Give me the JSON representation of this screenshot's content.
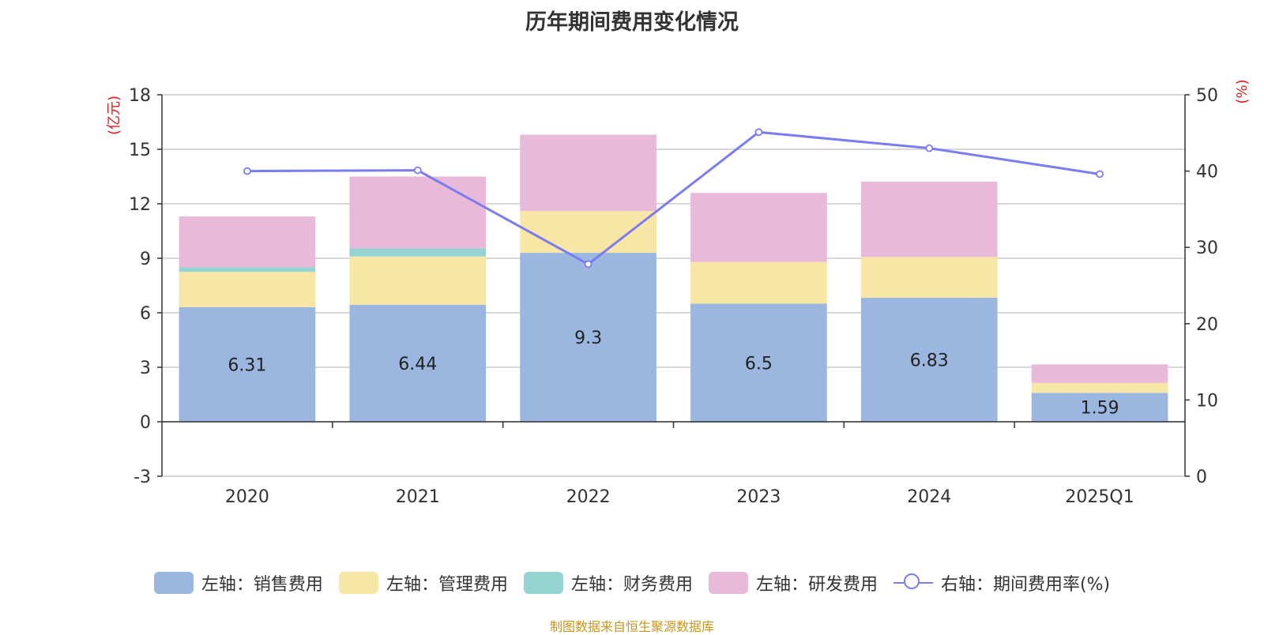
{
  "title": "历年期间费用变化情况",
  "footer": "制图数据来自恒生聚源数据库",
  "colors": {
    "sales": "#9bb7e0",
    "admin": "#f8e6a6",
    "finance": "#96d4d4",
    "rnd": "#e8b9d9",
    "rate": "#7b7cf0",
    "axis_unit": "#e02020",
    "grid": "#cccccc",
    "text": "#333333"
  },
  "chart_data": {
    "type": "bar",
    "stacked": true,
    "title": "历年期间费用变化情况",
    "categories": [
      "2020",
      "2021",
      "2022",
      "2023",
      "2024",
      "2025Q1"
    ],
    "left_axis": {
      "unit": "(亿元)",
      "ticks": [
        -3,
        0,
        3,
        6,
        9,
        12,
        15,
        18
      ],
      "range": [
        -3,
        18
      ]
    },
    "right_axis": {
      "unit": "(%)",
      "ticks": [
        0,
        10,
        20,
        30,
        40,
        50
      ],
      "range": [
        0,
        50
      ]
    },
    "series": [
      {
        "key": "sales",
        "name": "左轴：销售费用",
        "axis": "left",
        "values": [
          6.31,
          6.44,
          9.3,
          6.5,
          6.83,
          1.59
        ],
        "labels": [
          "6.31",
          "6.44",
          "9.3",
          "6.5",
          "6.83",
          "1.59"
        ]
      },
      {
        "key": "admin",
        "name": "左轴：管理费用",
        "axis": "left",
        "values": [
          1.94,
          2.66,
          2.3,
          2.3,
          2.24,
          0.55
        ]
      },
      {
        "key": "finance",
        "name": "左轴：财务费用",
        "axis": "left",
        "values": [
          0.25,
          0.45,
          0.0,
          -0.05,
          0.0,
          0.0
        ]
      },
      {
        "key": "rnd",
        "name": "左轴：研发费用",
        "axis": "left",
        "values": [
          2.8,
          3.95,
          4.2,
          3.8,
          4.15,
          1.02
        ]
      }
    ],
    "line": {
      "key": "rate",
      "name": "右轴：期间费用率(%)",
      "axis": "right",
      "values": [
        40.0,
        40.1,
        27.8,
        45.1,
        43.0,
        39.6
      ]
    },
    "legend_position": "bottom"
  }
}
